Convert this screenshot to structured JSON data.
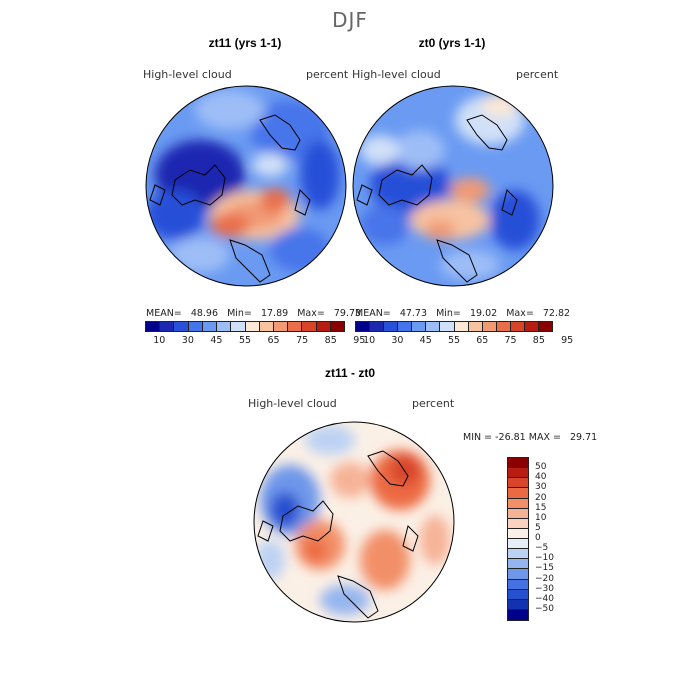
{
  "season_title": "DJF",
  "colors": {
    "abs_scale": [
      "#00008b",
      "#1c28b0",
      "#2850d8",
      "#4674ea",
      "#6a9af2",
      "#9dbdf6",
      "#d0e0f8",
      "#fbe8d6",
      "#f7c2a0",
      "#f19a74",
      "#e96e4c",
      "#d8442a",
      "#b81c10",
      "#8b0000"
    ],
    "diff_scale": [
      "#8b0000",
      "#b81c10",
      "#d8442a",
      "#ec6a42",
      "#f28f68",
      "#f6b296",
      "#fad3c0",
      "#fbf0e6",
      "#e6eef8",
      "#bcd2f4",
      "#95b5f0",
      "#6e97ea",
      "#4572e2",
      "#2550d0",
      "#1232b0",
      "#00008b"
    ]
  },
  "panel_left": {
    "title": "zt11 (yrs 1-1)",
    "variable": "High-level cloud",
    "units": "percent",
    "stats": "MEAN=   48.96   Min=   17.89   Max=   79.73"
  },
  "panel_right": {
    "title": "zt0 (yrs 1-1)",
    "variable": "High-level cloud",
    "units": "percent",
    "stats": "MEAN=   47.73   Min=   19.02   Max=   72.82"
  },
  "abs_colorbar_labels": [
    "10",
    "30",
    "45",
    "55",
    "65",
    "75",
    "85",
    "95"
  ],
  "panel_diff": {
    "title": "zt11 - zt0",
    "variable": "High-level cloud",
    "units": "percent",
    "stats": "MIN = -26.81 MAX =   29.71"
  },
  "diff_colorbar_labels": [
    "50",
    "40",
    "30",
    "20",
    "15",
    "10",
    "5",
    "0",
    "−5",
    "−10",
    "−15",
    "−20",
    "−30",
    "−40",
    "−50"
  ]
}
